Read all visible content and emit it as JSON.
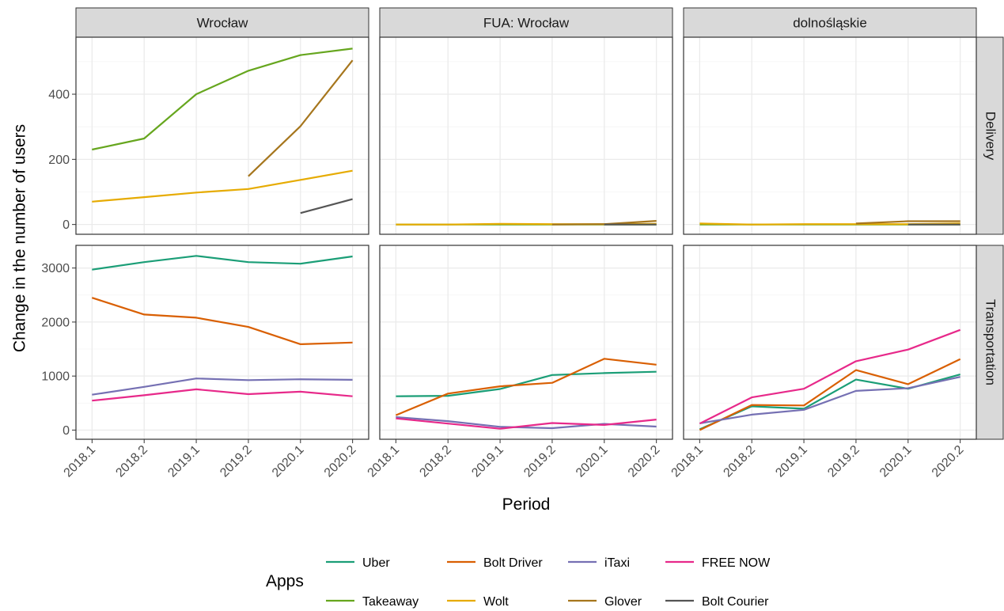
{
  "chart_data": {
    "type": "line",
    "facet_cols": [
      "Wrocław",
      "FUA: Wrocław",
      "dolnośląskie"
    ],
    "facet_rows": [
      "Delivery",
      "Transportation"
    ],
    "x": [
      "2018.1",
      "2018.2",
      "2019.1",
      "2019.2",
      "2020.1",
      "2020.2"
    ],
    "xlabel": "Period",
    "ylabel": "Change in the number of users",
    "legend_title": "Apps",
    "legend_position": "bottom",
    "grid": true,
    "series_colors": {
      "Uber": "#1b9e77",
      "Bolt Driver": "#d95f02",
      "iTaxi": "#7570b3",
      "FREE NOW": "#e7298a",
      "Takeaway": "#66a61e",
      "Wolt": "#e6ab02",
      "Glover": "#a6761d",
      "Bolt Courier": "#555555"
    },
    "legend_items": [
      "Uber",
      "Bolt Driver",
      "iTaxi",
      "FREE NOW",
      "Takeaway",
      "Wolt",
      "Glover",
      "Bolt Courier"
    ],
    "rows": [
      {
        "name": "Delivery",
        "ylim": [
          -30,
          575
        ],
        "yticks": [
          0,
          200,
          400
        ],
        "panels": [
          {
            "facet": "Wrocław",
            "series": [
              {
                "name": "Takeaway",
                "values": [
                  230,
                  264,
                  400,
                  472,
                  520,
                  540
                ]
              },
              {
                "name": "Wolt",
                "values": [
                  70,
                  84,
                  98,
                  109,
                  137,
                  165
                ]
              },
              {
                "name": "Glover",
                "values": [
                  null,
                  null,
                  null,
                  148,
                  302,
                  504
                ]
              },
              {
                "name": "Bolt Courier",
                "values": [
                  null,
                  null,
                  null,
                  null,
                  35,
                  78
                ]
              }
            ]
          },
          {
            "facet": "FUA: Wrocław",
            "series": [
              {
                "name": "Takeaway",
                "values": [
                  0,
                  0,
                  0,
                  0,
                  0,
                  0
                ]
              },
              {
                "name": "Wolt",
                "values": [
                  0,
                  0,
                  2,
                  1,
                  1,
                  2
                ]
              },
              {
                "name": "Glover",
                "values": [
                  null,
                  null,
                  null,
                  0,
                  1,
                  11
                ]
              },
              {
                "name": "Bolt Courier",
                "values": [
                  null,
                  null,
                  null,
                  null,
                  0,
                  0
                ]
              }
            ]
          },
          {
            "facet": "dolnośląskie",
            "series": [
              {
                "name": "Takeaway",
                "values": [
                  0,
                  0,
                  0,
                  0,
                  0,
                  0
                ]
              },
              {
                "name": "Wolt",
                "values": [
                  3,
                  0,
                  1,
                  1,
                  1,
                  3
                ]
              },
              {
                "name": "Glover",
                "values": [
                  null,
                  null,
                  null,
                  3,
                  10,
                  10
                ]
              },
              {
                "name": "Bolt Courier",
                "values": [
                  null,
                  null,
                  null,
                  null,
                  0,
                  0
                ]
              }
            ]
          }
        ]
      },
      {
        "name": "Transportation",
        "ylim": [
          -170,
          3420
        ],
        "yticks": [
          0,
          1000,
          2000,
          3000
        ],
        "panels": [
          {
            "facet": "Wrocław",
            "series": [
              {
                "name": "Uber",
                "values": [
                  2970,
                  3110,
                  3225,
                  3110,
                  3080,
                  3215
                ]
              },
              {
                "name": "Bolt Driver",
                "values": [
                  2450,
                  2140,
                  2080,
                  1910,
                  1590,
                  1620
                ]
              },
              {
                "name": "iTaxi",
                "values": [
                  655,
                  800,
                  955,
                  925,
                  940,
                  930
                ]
              },
              {
                "name": "FREE NOW",
                "values": [
                  545,
                  645,
                  755,
                  665,
                  710,
                  625
                ]
              }
            ]
          },
          {
            "facet": "FUA: Wrocław",
            "series": [
              {
                "name": "Uber",
                "values": [
                  625,
                  635,
                  760,
                  1020,
                  1055,
                  1080
                ]
              },
              {
                "name": "Bolt Driver",
                "values": [
                  275,
                  675,
                  810,
                  875,
                  1320,
                  1210
                ]
              },
              {
                "name": "iTaxi",
                "values": [
                  240,
                  165,
                  60,
                  35,
                  115,
                  65
                ]
              },
              {
                "name": "FREE NOW",
                "values": [
                  215,
                  120,
                  25,
                  130,
                  95,
                  195
                ]
              }
            ]
          },
          {
            "facet": "dolnośląskie",
            "series": [
              {
                "name": "Uber",
                "values": [
                  15,
                  440,
                  395,
                  935,
                  765,
                  1030
                ]
              },
              {
                "name": "Bolt Driver",
                "values": [
                  0,
                  465,
                  455,
                  1110,
                  850,
                  1315
                ]
              },
              {
                "name": "iTaxi",
                "values": [
                  125,
                  285,
                  375,
                  725,
                  775,
                  985
                ]
              },
              {
                "name": "FREE NOW",
                "values": [
                  120,
                  605,
                  765,
                  1275,
                  1490,
                  1855
                ]
              }
            ]
          }
        ]
      }
    ]
  }
}
